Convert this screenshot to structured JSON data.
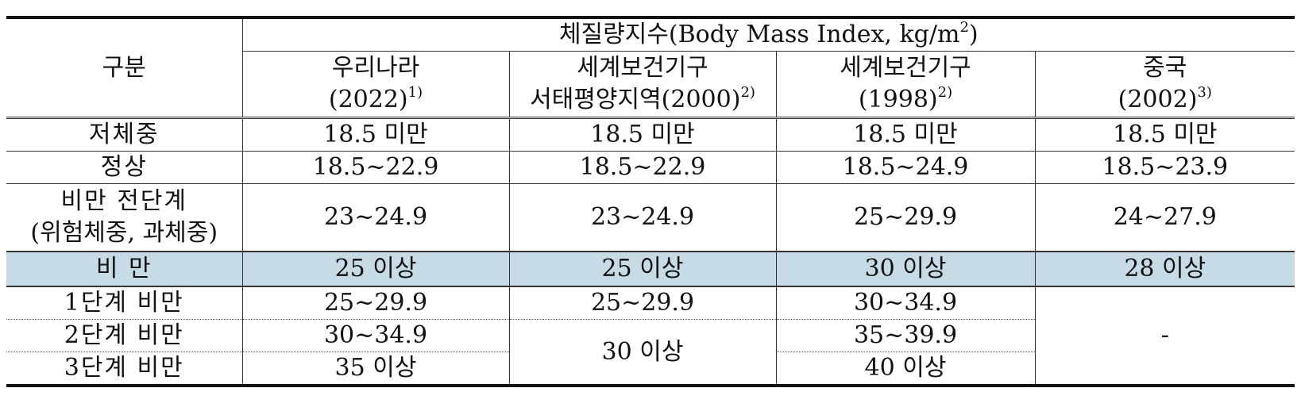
{
  "header": {
    "category": "구분",
    "title": "체질량지수(Body Mass Index, kg/m",
    "title_sup": "2",
    "title_close": ")",
    "columns": [
      {
        "name": "우리나라",
        "year": "(2022)",
        "note": "1)"
      },
      {
        "name": "세계보건기구",
        "year": "서태평양지역(2000)",
        "note": "2)"
      },
      {
        "name": "세계보건기구",
        "year": "(1998)",
        "note": "2)"
      },
      {
        "name": "중국",
        "year": "(2002)",
        "note": "3)"
      }
    ]
  },
  "rows": {
    "underweight": {
      "label": "저체중",
      "values": [
        "18.5 미만",
        "18.5 미만",
        "18.5 미만",
        "18.5 미만"
      ]
    },
    "normal": {
      "label": "정상",
      "values": [
        "18.5~22.9",
        "18.5~22.9",
        "18.5~24.9",
        "18.5~23.9"
      ]
    },
    "pre_obese": {
      "label_line1": "비만 전단계",
      "label_line2": "(위험체중, 과체중)",
      "values": [
        "23~24.9",
        "23~24.9",
        "25~29.9",
        "24~27.9"
      ]
    },
    "obese": {
      "label": "비 만",
      "values": [
        "25 이상",
        "25 이상",
        "30 이상",
        "28 이상"
      ]
    },
    "stage1": {
      "label": "1단계 비만",
      "values": [
        "25~29.9",
        "25~29.9",
        "30~34.9"
      ]
    },
    "stage2": {
      "label": "2단계 비만",
      "values": [
        "30~34.9",
        "35~39.9"
      ]
    },
    "stage3": {
      "label": "3단계 비만",
      "values": [
        "35 이상",
        "40 이상"
      ]
    },
    "wpro_stage23": "30 이상",
    "china_stages": "-"
  }
}
